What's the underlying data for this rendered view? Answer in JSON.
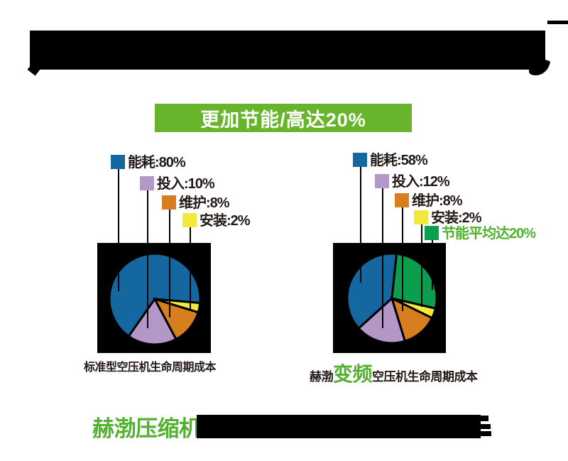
{
  "banner": {
    "label": "更加节能/高达20%",
    "bg": "#68b42c"
  },
  "colors": {
    "blue": "#15679f",
    "purple": "#b398c7",
    "orange": "#d87e1f",
    "yellow": "#f1e93c",
    "green_pie": "#0a9e4e",
    "green_text": "#52b230",
    "dark_text": "#231916",
    "banner_green": "#68b42c"
  },
  "charts": [
    {
      "id": "standard",
      "legend": [
        {
          "label": "能耗:80%",
          "color": "#15679f",
          "text_color": "#231916"
        },
        {
          "label": "投入:10%",
          "color": "#b398c7",
          "text_color": "#231916"
        },
        {
          "label": "维护:8%",
          "color": "#d87e1f",
          "text_color": "#231916"
        },
        {
          "label": "安装:2%",
          "color": "#f1e93c",
          "text_color": "#231916"
        }
      ],
      "caption": [
        {
          "text": "标准型空压机生命周期成本",
          "color": "#231916",
          "size": 16
        }
      ]
    },
    {
      "id": "hebo-vfd",
      "legend": [
        {
          "label": "能耗:58%",
          "color": "#15679f",
          "text_color": "#231916"
        },
        {
          "label": "投入:12%",
          "color": "#b398c7",
          "text_color": "#231916"
        },
        {
          "label": "维护:8%",
          "color": "#d87e1f",
          "text_color": "#231916"
        },
        {
          "label": "安装:2%",
          "color": "#f1e93c",
          "text_color": "#231916"
        },
        {
          "label": "节能平均达20%",
          "color": "#0a9e4e",
          "text_color": "#52b230"
        }
      ],
      "caption": [
        {
          "text": "赫渤",
          "color": "#231916",
          "size": 17
        },
        {
          "text": "变频",
          "color": "#52b230",
          "size": 28
        },
        {
          "text": "空压机生命周期成本",
          "color": "#231916",
          "size": 17
        }
      ]
    }
  ],
  "chart_data": [
    {
      "type": "pie",
      "title": "标准型空压机生命周期成本",
      "labels": [
        "能耗",
        "投入",
        "维护",
        "安装"
      ],
      "values": [
        80,
        10,
        8,
        2
      ],
      "unit": "%",
      "colors": [
        "#15679f",
        "#b398c7",
        "#d87e1f",
        "#f1e93c"
      ],
      "background": "#000000",
      "legend_position": "top-staggered",
      "display_segments": [
        {
          "label": "能耗",
          "color": "#15679f",
          "from": 215,
          "to": 455
        },
        {
          "label": "投入",
          "color": "#b398c7",
          "from": 152,
          "to": 215
        },
        {
          "label": "维护",
          "color": "#d87e1f",
          "from": 107,
          "to": 152
        },
        {
          "label": "安装",
          "color": "#f1e93c",
          "from": 95,
          "to": 107
        }
      ]
    },
    {
      "type": "pie",
      "title": "赫渤变频空压机生命周期成本",
      "labels": [
        "能耗",
        "投入",
        "维护",
        "安装",
        "节能平均达"
      ],
      "values": [
        58,
        12,
        8,
        2,
        20
      ],
      "unit": "%",
      "colors": [
        "#15679f",
        "#b398c7",
        "#d87e1f",
        "#f1e93c",
        "#0a9e4e"
      ],
      "background": "#000000",
      "legend_position": "top-staggered",
      "display_segments": [
        {
          "label": "能耗",
          "color": "#15679f",
          "from": 228,
          "to": 366
        },
        {
          "label": "投入",
          "color": "#b398c7",
          "from": 163,
          "to": 228
        },
        {
          "label": "维护",
          "color": "#d87e1f",
          "from": 116,
          "to": 163
        },
        {
          "label": "安装",
          "color": "#f1e93c",
          "from": 103,
          "to": 116
        },
        {
          "label": "节能平均达",
          "color": "#0a9e4e",
          "from": 6,
          "to": 103
        }
      ]
    }
  ],
  "footer": {
    "brand": "赫渤压缩机",
    "brand_color": "#52b230"
  }
}
